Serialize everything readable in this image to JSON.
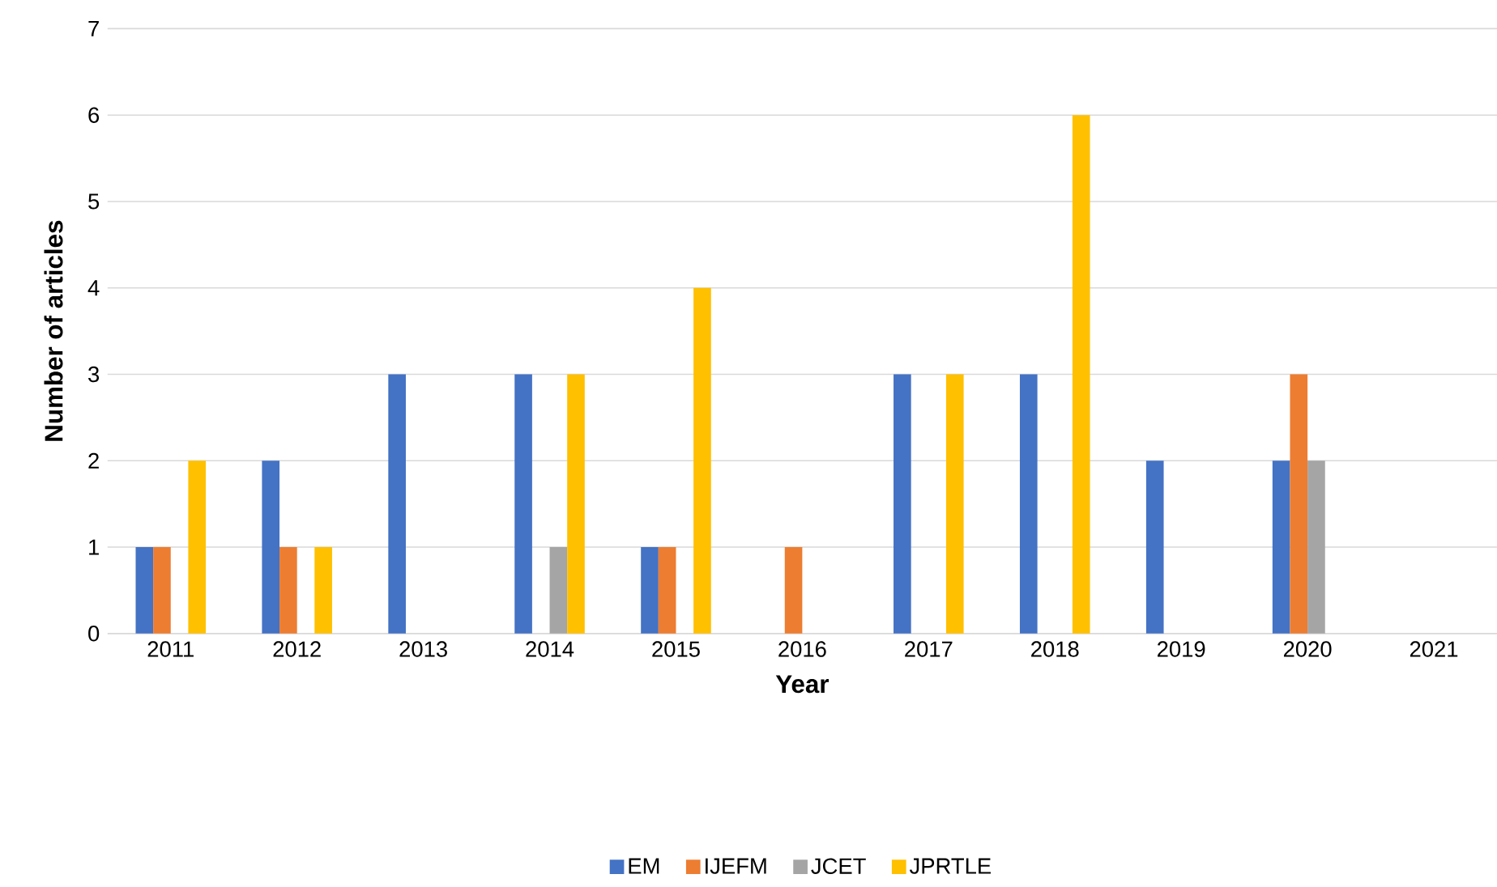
{
  "chart_data": {
    "type": "bar",
    "xlabel": "Year",
    "ylabel": "Number of articles",
    "categories": [
      "2011",
      "2012",
      "2013",
      "2014",
      "2015",
      "2016",
      "2017",
      "2018",
      "2019",
      "2020",
      "2021"
    ],
    "series": [
      {
        "name": "EM",
        "color": "#4472c4",
        "values": [
          1,
          2,
          3,
          3,
          1,
          0,
          3,
          3,
          2,
          2,
          0
        ]
      },
      {
        "name": "IJEFM",
        "color": "#ed7d31",
        "values": [
          1,
          1,
          0,
          0,
          1,
          1,
          0,
          0,
          0,
          3,
          0
        ]
      },
      {
        "name": "JCET",
        "color": "#a5a5a5",
        "values": [
          0,
          0,
          0,
          1,
          0,
          0,
          0,
          0,
          0,
          2,
          0
        ]
      },
      {
        "name": "JPRTLE",
        "color": "#ffc000",
        "values": [
          2,
          1,
          0,
          3,
          4,
          0,
          3,
          6,
          0,
          0,
          0
        ]
      }
    ],
    "ylim": [
      0,
      7
    ],
    "yticks": [
      0,
      1,
      2,
      3,
      4,
      5,
      6,
      7
    ],
    "grid": "y",
    "legend": "bottom"
  }
}
